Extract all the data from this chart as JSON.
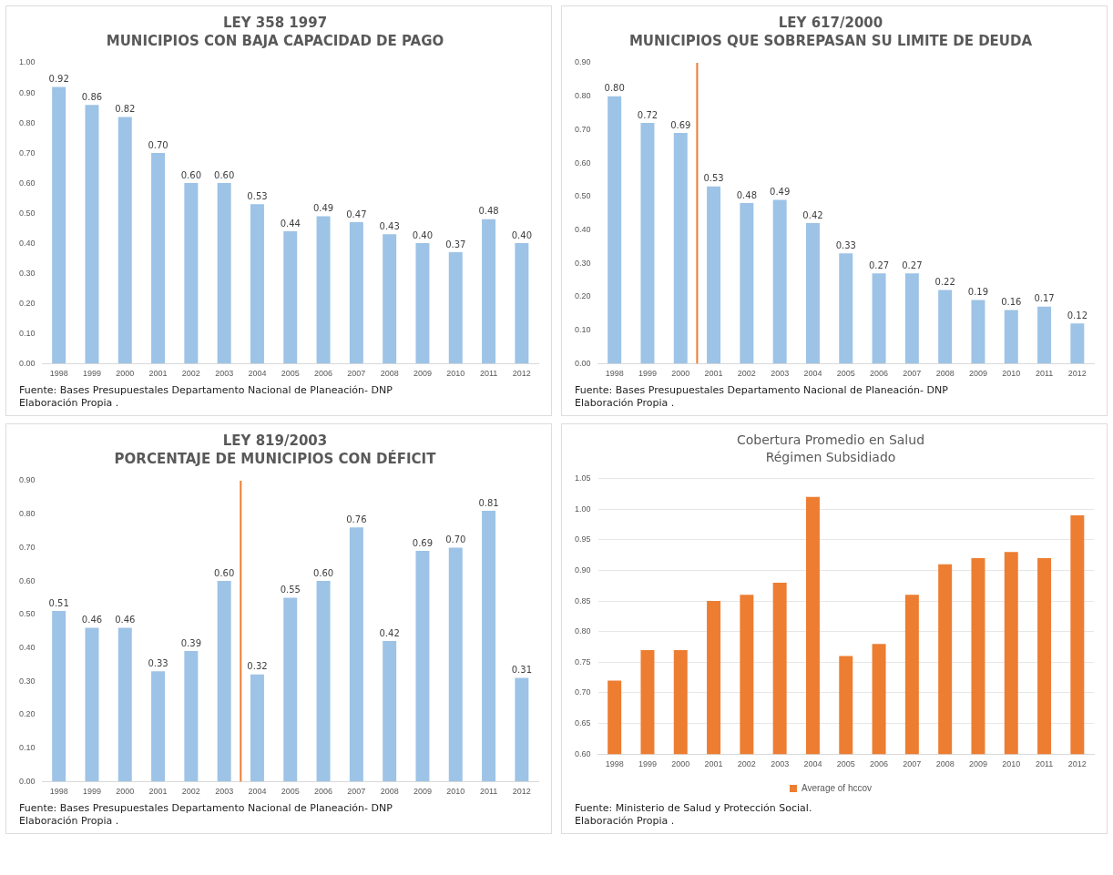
{
  "chart_data": [
    {
      "type": "bar",
      "title": "LEY 358 1997",
      "subtitle": "MUNICIPIOS CON BAJA CAPACIDAD DE PAGO",
      "x": [
        1998,
        1999,
        2000,
        2001,
        2002,
        2003,
        2004,
        2005,
        2006,
        2007,
        2008,
        2009,
        2010,
        2011,
        2012
      ],
      "xlim": [
        1997.5,
        2012.5
      ],
      "xticks": [
        1998,
        1999,
        2000,
        2001,
        2002,
        2003,
        2004,
        2005,
        2006,
        2007,
        2008,
        2009,
        2010,
        2011,
        2012
      ],
      "series": [
        {
          "color": "#9dc3e6",
          "values": [
            0.92,
            0.86,
            0.82,
            0.7,
            0.6,
            0.6,
            0.53,
            0.44,
            0.49,
            0.47,
            0.43,
            0.4,
            0.37,
            0.48,
            0.4
          ],
          "value_labels": [
            "0.92",
            "0.86",
            "0.82",
            "0.70",
            "0.60",
            "0.60",
            "0.53",
            "0.44",
            "0.49",
            "0.47",
            "0.43",
            "0.40",
            "0.37",
            "0.48",
            "0.40"
          ]
        }
      ],
      "ylim": [
        0,
        1
      ],
      "yticks": [
        {
          "value": 0,
          "label": "0.00"
        },
        {
          "value": 0.1,
          "label": "0.10"
        },
        {
          "value": 0.2,
          "label": "0.20"
        },
        {
          "value": 0.3,
          "label": "0.30"
        },
        {
          "value": 0.4,
          "label": "0.40"
        },
        {
          "value": 0.5,
          "label": "0.50"
        },
        {
          "value": 0.6,
          "label": "0.60"
        },
        {
          "value": 0.7,
          "label": "0.70"
        },
        {
          "value": 0.8,
          "label": "0.80"
        },
        {
          "value": 0.9,
          "label": "0.90"
        },
        {
          "value": 1,
          "label": "1.00"
        }
      ],
      "annotations": [
        "Fuente: Bases Presupuestales Departamento Nacional de Planeación- DNP",
        "Elaboración Propia ."
      ]
    },
    {
      "type": "bar",
      "title": "LEY 617/2000",
      "subtitle": "MUNICIPIOS QUE SOBREPASAN SU LIMITE DE DEUDA",
      "x": [
        1998,
        1999,
        2000,
        2001,
        2002,
        2003,
        2004,
        2005,
        2006,
        2007,
        2008,
        2009,
        2010,
        2011,
        2012
      ],
      "xlim": [
        1997.5,
        2012.5
      ],
      "xticks": [
        1998,
        1999,
        2000,
        2001,
        2002,
        2003,
        2004,
        2005,
        2006,
        2007,
        2008,
        2009,
        2010,
        2011,
        2012
      ],
      "series": [
        {
          "color": "#9dc3e6",
          "values": [
            0.8,
            0.72,
            0.69,
            0.53,
            0.48,
            0.49,
            0.42,
            0.33,
            0.27,
            0.27,
            0.22,
            0.19,
            0.16,
            0.17,
            0.12
          ],
          "value_labels": [
            "0.80",
            "0.72",
            "0.69",
            "0.53",
            "0.48",
            "0.49",
            "0.42",
            "0.33",
            "0.27",
            "0.27",
            "0.22",
            "0.19",
            "0.16",
            "0.17",
            "0.12"
          ]
        }
      ],
      "ylim": [
        0,
        0.9
      ],
      "yticks": [
        {
          "value": 0,
          "label": "0.00"
        },
        {
          "value": 0.1,
          "label": "0.10"
        },
        {
          "value": 0.2,
          "label": "0.20"
        },
        {
          "value": 0.3,
          "label": "0.30"
        },
        {
          "value": 0.4,
          "label": "0.40"
        },
        {
          "value": 0.5,
          "label": "0.50"
        },
        {
          "value": 0.6,
          "label": "0.60"
        },
        {
          "value": 0.7,
          "label": "0.70"
        },
        {
          "value": 0.8,
          "label": "0.80"
        },
        {
          "value": 0.9,
          "label": "0.90"
        }
      ],
      "ref_lines": [
        {
          "axis": "x",
          "value": 2000.5,
          "color": "#ed7d31"
        }
      ],
      "annotations": [
        "Fuente: Bases Presupuestales Departamento Nacional de Planeación- DNP",
        "Elaboración Propia ."
      ]
    },
    {
      "type": "bar",
      "title": "LEY 819/2003",
      "subtitle": "PORCENTAJE DE MUNICIPIOS CON DÉFICIT",
      "x": [
        1998,
        1999,
        2000,
        2001,
        2002,
        2003,
        2004,
        2005,
        2006,
        2007,
        2008,
        2009,
        2010,
        2011,
        2012
      ],
      "xlim": [
        1997.5,
        2012.5
      ],
      "xticks": [
        1998,
        1999,
        2000,
        2001,
        2002,
        2003,
        2004,
        2005,
        2006,
        2007,
        2008,
        2009,
        2010,
        2011,
        2012
      ],
      "series": [
        {
          "color": "#9dc3e6",
          "values": [
            0.51,
            0.46,
            0.46,
            0.33,
            0.39,
            0.6,
            0.32,
            0.55,
            0.6,
            0.76,
            0.42,
            0.69,
            0.7,
            0.81,
            0.31
          ],
          "value_labels": [
            "0.51",
            "0.46",
            "0.46",
            "0.33",
            "0.39",
            "0.60",
            "0.32",
            "0.55",
            "0.60",
            "0.76",
            "0.42",
            "0.69",
            "0.70",
            "0.81",
            "0.31"
          ]
        }
      ],
      "ylim": [
        0,
        0.9
      ],
      "yticks": [
        {
          "value": 0,
          "label": "0.00"
        },
        {
          "value": 0.1,
          "label": "0.10"
        },
        {
          "value": 0.2,
          "label": "0.20"
        },
        {
          "value": 0.3,
          "label": "0.30"
        },
        {
          "value": 0.4,
          "label": "0.40"
        },
        {
          "value": 0.5,
          "label": "0.50"
        },
        {
          "value": 0.6,
          "label": "0.60"
        },
        {
          "value": 0.7,
          "label": "0.70"
        },
        {
          "value": 0.8,
          "label": "0.80"
        },
        {
          "value": 0.9,
          "label": "0.90"
        }
      ],
      "ref_lines": [
        {
          "axis": "x",
          "value": 2003.5,
          "color": "#ed7d31"
        }
      ],
      "annotations": [
        "Fuente: Bases Presupuestales Departamento Nacional de Planeación- DNP",
        "Elaboración Propia ."
      ]
    },
    {
      "type": "bar",
      "title": "Cobertura Promedio en Salud",
      "subtitle": "Régimen Subsidiado",
      "x": [
        1998,
        1999,
        2000,
        2001,
        2002,
        2003,
        2004,
        2005,
        2006,
        2007,
        2008,
        2009,
        2010,
        2011,
        2012
      ],
      "xlim": [
        1997.5,
        2012.5
      ],
      "xticks": [
        1998,
        1999,
        2000,
        2001,
        2002,
        2003,
        2004,
        2005,
        2006,
        2007,
        2008,
        2009,
        2010,
        2011,
        2012
      ],
      "series": [
        {
          "name": "Average of hccov",
          "color": "#ed7d31",
          "values": [
            0.72,
            0.77,
            0.77,
            0.85,
            0.86,
            0.88,
            1.02,
            0.76,
            0.78,
            0.86,
            0.91,
            0.92,
            0.93,
            0.92,
            0.99
          ]
        }
      ],
      "ylim": [
        0.6,
        1.05
      ],
      "yticks": [
        {
          "value": 0.6,
          "label": "0.60"
        },
        {
          "value": 0.65,
          "label": "0.65"
        },
        {
          "value": 0.7,
          "label": "0.70"
        },
        {
          "value": 0.75,
          "label": "0.75"
        },
        {
          "value": 0.8,
          "label": "0.80"
        },
        {
          "value": 0.85,
          "label": "0.85"
        },
        {
          "value": 0.9,
          "label": "0.90"
        },
        {
          "value": 0.95,
          "label": "0.95"
        },
        {
          "value": 1,
          "label": "1.00"
        },
        {
          "value": 1.05,
          "label": "1.05"
        }
      ],
      "grid": "y",
      "legend": "bottom",
      "annotations": [
        "Fuente: Ministerio de Salud y Protección Social.",
        "Elaboración Propia ."
      ]
    }
  ]
}
